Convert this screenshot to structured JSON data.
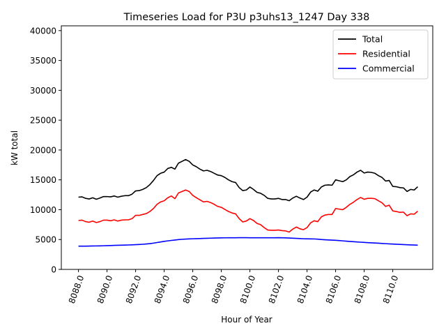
{
  "chart_data": {
    "type": "line",
    "title": "Timeseries Load for P3U p3uhs13_1247  Day 338",
    "xlabel": "Hour of Year",
    "ylabel": "kW total",
    "xlim": [
      8086.8,
      8112.8
    ],
    "ylim": [
      0,
      40800
    ],
    "xticks": [
      8088,
      8090,
      8092,
      8094,
      8096,
      8098,
      8100,
      8102,
      8104,
      8106,
      8108,
      8110
    ],
    "xtick_labels": [
      "8088.0",
      "8090.0",
      "8092.0",
      "8094.0",
      "8096.0",
      "8098.0",
      "8100.0",
      "8102.0",
      "8104.0",
      "8106.0",
      "8108.0",
      "8110.0"
    ],
    "yticks": [
      0,
      5000,
      10000,
      15000,
      20000,
      25000,
      30000,
      35000,
      40000
    ],
    "ytick_labels": [
      "0",
      "5000",
      "10000",
      "15000",
      "20000",
      "25000",
      "30000",
      "35000",
      "40000"
    ],
    "legend_position": "top-right",
    "grid": false,
    "x": [
      8088,
      8088.25,
      8088.5,
      8088.75,
      8089,
      8089.25,
      8089.5,
      8089.75,
      8090,
      8090.25,
      8090.5,
      8090.75,
      8091,
      8091.25,
      8091.5,
      8091.75,
      8092,
      8092.25,
      8092.5,
      8092.75,
      8093,
      8093.25,
      8093.5,
      8093.75,
      8094,
      8094.25,
      8094.5,
      8094.75,
      8095,
      8095.25,
      8095.5,
      8095.75,
      8096,
      8096.25,
      8096.5,
      8096.75,
      8097,
      8097.25,
      8097.5,
      8097.75,
      8098,
      8098.25,
      8098.5,
      8098.75,
      8099,
      8099.25,
      8099.5,
      8099.75,
      8100,
      8100.25,
      8100.5,
      8100.75,
      8101,
      8101.25,
      8101.5,
      8101.75,
      8102,
      8102.25,
      8102.5,
      8102.75,
      8103,
      8103.25,
      8103.5,
      8103.75,
      8104,
      8104.25,
      8104.5,
      8104.75,
      8105,
      8105.25,
      8105.5,
      8105.75,
      8106,
      8106.25,
      8106.5,
      8106.75,
      8107,
      8107.25,
      8107.5,
      8107.75,
      8108,
      8108.25,
      8108.5,
      8108.75,
      8109,
      8109.25,
      8109.5,
      8109.75,
      8110,
      8110.25,
      8110.5,
      8110.75,
      8111,
      8111.25,
      8111.5,
      8111.75
    ],
    "series": [
      {
        "name": "Total",
        "color": "#000000",
        "values": [
          12100,
          12150,
          11900,
          11800,
          12000,
          11750,
          11950,
          12200,
          12200,
          12150,
          12300,
          12100,
          12250,
          12350,
          12350,
          12600,
          13150,
          13200,
          13400,
          13700,
          14200,
          14900,
          15700,
          16100,
          16300,
          16900,
          17100,
          16800,
          17800,
          18100,
          18400,
          18100,
          17500,
          17200,
          16800,
          16500,
          16600,
          16400,
          16100,
          15800,
          15700,
          15400,
          15000,
          14700,
          14550,
          13700,
          13200,
          13300,
          13800,
          13400,
          12900,
          12750,
          12400,
          11900,
          11800,
          11800,
          11900,
          11700,
          11700,
          11500,
          11950,
          12250,
          11950,
          11700,
          12100,
          12950,
          13300,
          13100,
          13800,
          14100,
          14150,
          14100,
          15000,
          14850,
          14700,
          15000,
          15550,
          15850,
          16300,
          16600,
          16150,
          16300,
          16250,
          16100,
          15700,
          15400,
          14800,
          14900,
          13900,
          13850,
          13700,
          13650,
          13050,
          13400,
          13300,
          13850
        ]
      },
      {
        "name": "Residential",
        "color": "#ff0000",
        "values": [
          8200,
          8250,
          8000,
          7900,
          8100,
          7850,
          8000,
          8250,
          8250,
          8150,
          8300,
          8100,
          8250,
          8300,
          8300,
          8500,
          9050,
          9050,
          9200,
          9350,
          9700,
          10200,
          10900,
          11300,
          11500,
          12000,
          12300,
          11850,
          12800,
          13050,
          13300,
          13050,
          12400,
          12000,
          11650,
          11300,
          11400,
          11200,
          10900,
          10550,
          10400,
          10050,
          9700,
          9450,
          9300,
          8500,
          7950,
          8100,
          8500,
          8200,
          7700,
          7500,
          7000,
          6600,
          6550,
          6550,
          6600,
          6500,
          6450,
          6250,
          6750,
          7100,
          6800,
          6650,
          7000,
          7800,
          8150,
          8000,
          8800,
          9100,
          9200,
          9200,
          10200,
          10100,
          10000,
          10400,
          10900,
          11250,
          11700,
          12050,
          11750,
          11900,
          11900,
          11850,
          11500,
          11150,
          10550,
          10750,
          9800,
          9700,
          9550,
          9600,
          9000,
          9300,
          9250,
          9750
        ]
      },
      {
        "name": "Commercial",
        "color": "#0000ff",
        "values": [
          3900,
          3900,
          3900,
          3910,
          3920,
          3930,
          3940,
          3960,
          3980,
          4000,
          4020,
          4040,
          4060,
          4070,
          4090,
          4110,
          4140,
          4170,
          4210,
          4260,
          4320,
          4400,
          4500,
          4600,
          4700,
          4780,
          4850,
          4920,
          4990,
          5040,
          5080,
          5110,
          5130,
          5150,
          5170,
          5190,
          5210,
          5230,
          5250,
          5270,
          5280,
          5290,
          5300,
          5300,
          5300,
          5310,
          5310,
          5310,
          5300,
          5300,
          5300,
          5300,
          5300,
          5300,
          5300,
          5300,
          5310,
          5300,
          5280,
          5250,
          5220,
          5190,
          5160,
          5130,
          5120,
          5110,
          5100,
          5060,
          5000,
          4960,
          4930,
          4900,
          4870,
          4830,
          4780,
          4730,
          4680,
          4640,
          4600,
          4560,
          4520,
          4480,
          4450,
          4420,
          4390,
          4350,
          4310,
          4280,
          4250,
          4220,
          4190,
          4160,
          4130,
          4100,
          4080,
          4060
        ]
      }
    ]
  }
}
